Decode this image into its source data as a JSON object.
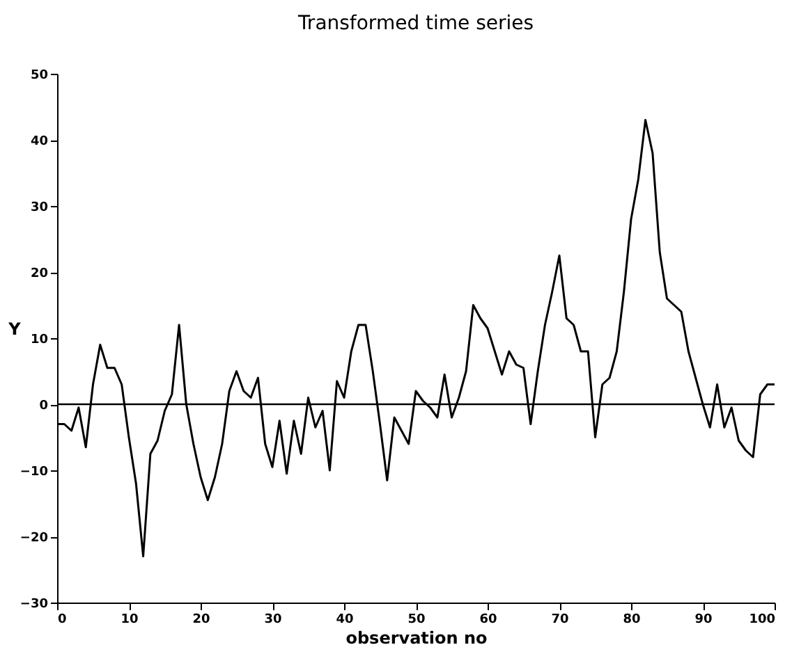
{
  "chart_data": {
    "type": "line",
    "title": "Transformed time series",
    "xlabel": "observation no",
    "ylabel": "Y",
    "x": [
      0,
      1,
      2,
      3,
      4,
      5,
      6,
      7,
      8,
      9,
      10,
      11,
      12,
      13,
      14,
      15,
      16,
      17,
      18,
      19,
      20,
      21,
      22,
      23,
      24,
      25,
      26,
      27,
      28,
      29,
      30,
      31,
      32,
      33,
      34,
      35,
      36,
      37,
      38,
      39,
      40,
      41,
      42,
      43,
      44,
      45,
      46,
      47,
      48,
      49,
      50,
      51,
      52,
      53,
      54,
      55,
      56,
      57,
      58,
      59,
      60,
      61,
      62,
      63,
      64,
      65,
      66,
      67,
      68,
      69,
      70,
      71,
      72,
      73,
      74,
      75,
      76,
      77,
      78,
      79,
      80,
      81,
      82,
      83,
      84,
      85,
      86,
      87,
      88,
      89,
      90,
      91,
      92,
      93,
      94,
      95,
      96,
      97,
      98,
      99,
      100
    ],
    "series": [
      {
        "color": "#000000",
        "values": [
          -3,
          -3,
          -4,
          -0.5,
          -6.5,
          3,
          9,
          5.5,
          5.5,
          3,
          -5,
          -12,
          -23,
          -7.5,
          -5.5,
          -1,
          1.5,
          12,
          0,
          -6,
          -11,
          -14.5,
          -11,
          -6,
          2,
          5,
          2,
          1,
          4,
          -6,
          -9.5,
          -2.5,
          -10.5,
          -2.5,
          -7.5,
          1,
          -3.5,
          -1,
          -10,
          3.5,
          1,
          8,
          12,
          12,
          5,
          -3,
          -11.5,
          -2,
          -4,
          -6,
          2,
          0.5,
          -0.5,
          -2,
          4.5,
          -2,
          1,
          5,
          15,
          13,
          11.5,
          8,
          4.5,
          8,
          6,
          5.5,
          -3,
          5,
          12,
          17,
          22.5,
          13,
          12,
          8,
          8,
          -5,
          3,
          4,
          8,
          17,
          28,
          34,
          43,
          38,
          23,
          16,
          15,
          14,
          8,
          4,
          0,
          -3.5,
          3,
          -3.5,
          -0.5,
          -5.5,
          -7,
          -8,
          1.5,
          3,
          3
        ]
      }
    ],
    "xlim": [
      0,
      100
    ],
    "xticks": [
      0,
      10,
      20,
      30,
      40,
      50,
      60,
      70,
      80,
      90,
      100
    ],
    "ylim": [
      -30,
      50
    ],
    "yticks": [
      -30,
      -20,
      -10,
      0,
      10,
      20,
      30,
      40,
      50
    ],
    "ref_lines": [
      {
        "axis": "y",
        "value": 0,
        "color": "#000000"
      }
    ],
    "grid": false,
    "legend": false,
    "marker": "none",
    "line_style": "solid"
  }
}
